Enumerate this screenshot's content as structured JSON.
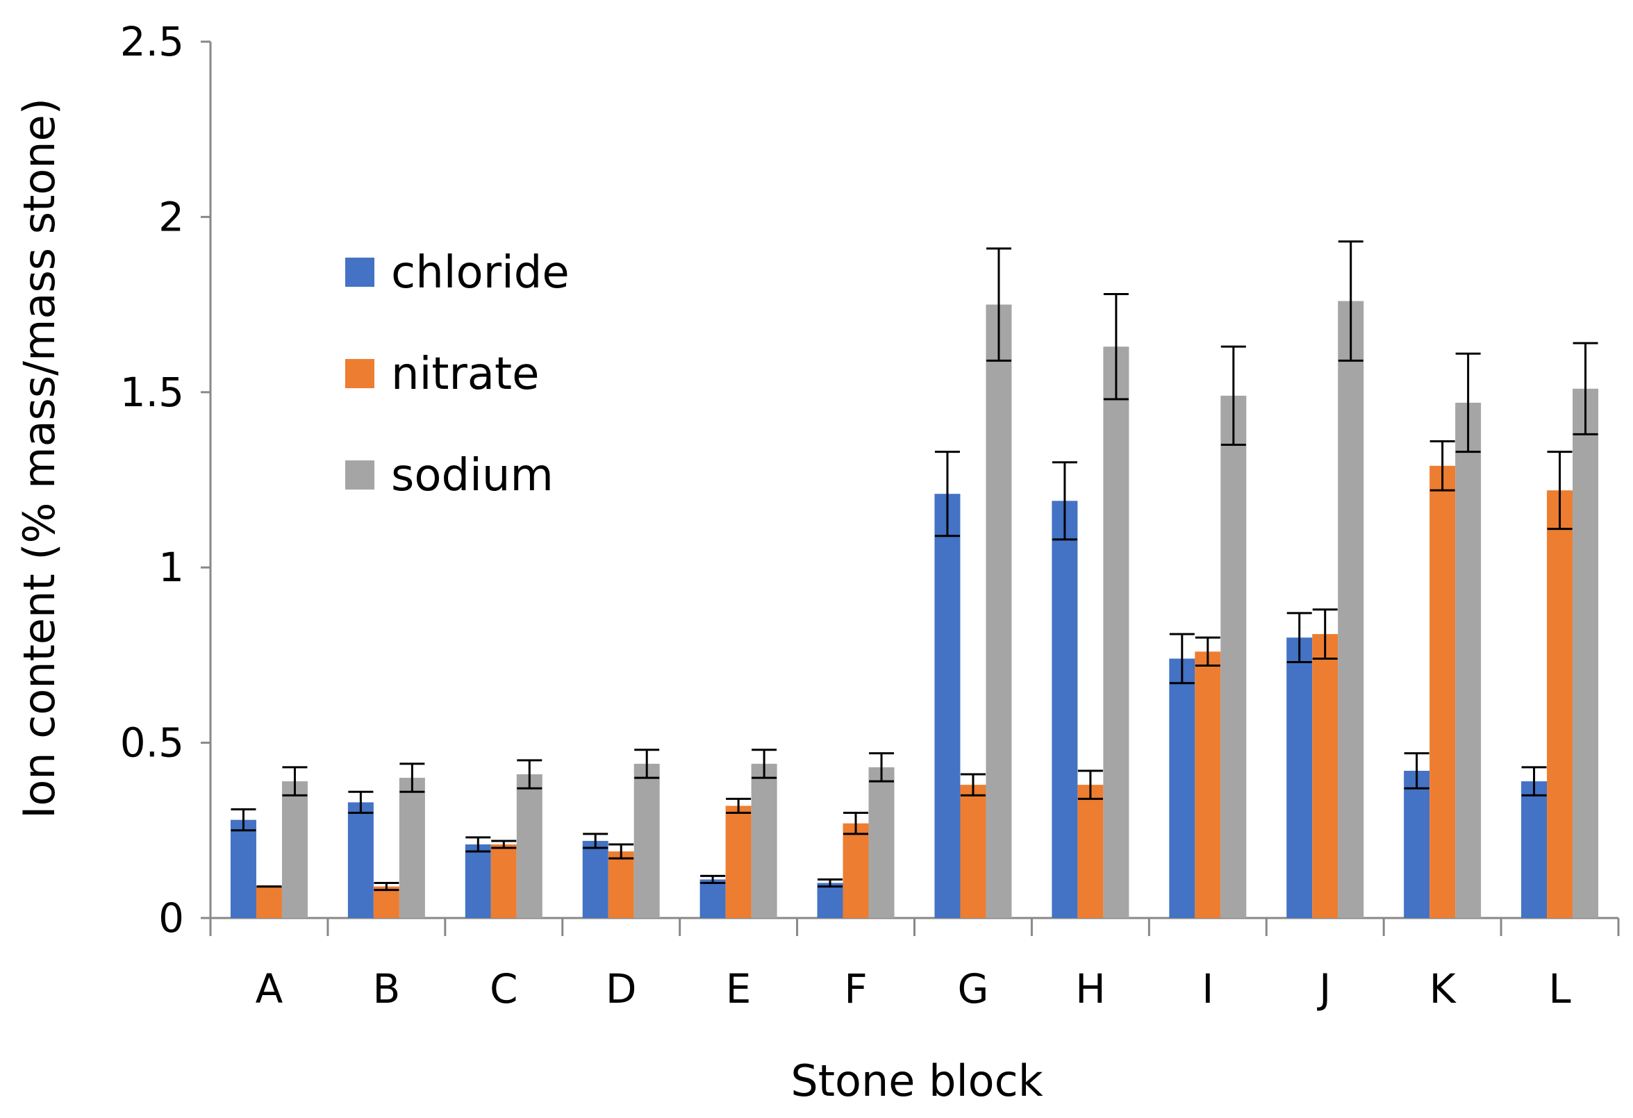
{
  "chart_data": {
    "type": "bar",
    "title": "",
    "xlabel": "Stone block",
    "ylabel": "Ion content (% mass/mass stone)",
    "ylim": [
      0,
      2.5
    ],
    "yticks": [
      0,
      0.5,
      1,
      1.5,
      2,
      2.5
    ],
    "ytick_labels": [
      "0",
      "0.5",
      "1",
      "1.5",
      "2",
      "2.5"
    ],
    "grid": false,
    "legend_position": "upper-left",
    "categories": [
      "A",
      "B",
      "C",
      "D",
      "E",
      "F",
      "G",
      "H",
      "I",
      "J",
      "K",
      "L"
    ],
    "series": [
      {
        "name": "chloride",
        "color": "#4472C4",
        "values": [
          0.28,
          0.33,
          0.21,
          0.22,
          0.11,
          0.1,
          1.21,
          1.19,
          0.74,
          0.8,
          0.42,
          0.39
        ],
        "errors": [
          0.03,
          0.03,
          0.02,
          0.02,
          0.01,
          0.01,
          0.12,
          0.11,
          0.07,
          0.07,
          0.05,
          0.04
        ]
      },
      {
        "name": "nitrate",
        "color": "#ED7D31",
        "values": [
          0.09,
          0.09,
          0.21,
          0.19,
          0.32,
          0.27,
          0.38,
          0.38,
          0.76,
          0.81,
          1.29,
          1.22
        ],
        "errors": [
          0.0,
          0.01,
          0.01,
          0.02,
          0.02,
          0.03,
          0.03,
          0.04,
          0.04,
          0.07,
          0.07,
          0.11
        ]
      },
      {
        "name": "sodium",
        "color": "#A5A5A5",
        "values": [
          0.39,
          0.4,
          0.41,
          0.44,
          0.44,
          0.43,
          1.75,
          1.63,
          1.49,
          1.76,
          1.47,
          1.51
        ],
        "errors": [
          0.04,
          0.04,
          0.04,
          0.04,
          0.04,
          0.04,
          0.16,
          0.15,
          0.14,
          0.17,
          0.14,
          0.13
        ]
      }
    ],
    "axis_color": "#888888",
    "errorbar_color": "#000000"
  }
}
